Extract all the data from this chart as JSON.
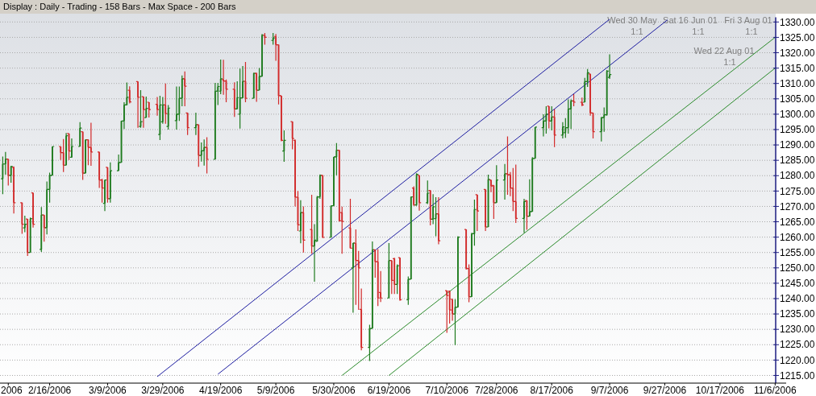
{
  "chart_data": {
    "type": "candlestick",
    "title": "Display :  Daily  - Trading - 158 Bars -  Max Space - 200 Bars",
    "x": [
      "2006-01-30",
      "2006-01-31",
      "2006-02-01",
      "2006-02-02",
      "2006-02-03",
      "2006-02-06",
      "2006-02-07",
      "2006-02-08",
      "2006-02-09",
      "2006-02-10",
      "2006-02-13",
      "2006-02-14",
      "2006-02-15",
      "2006-02-16",
      "2006-02-17",
      "2006-02-20",
      "2006-02-21",
      "2006-02-22",
      "2006-02-23",
      "2006-02-24",
      "2006-02-27",
      "2006-02-28",
      "2006-03-01",
      "2006-03-02",
      "2006-03-03",
      "2006-03-06",
      "2006-03-07",
      "2006-03-08",
      "2006-03-09",
      "2006-03-10",
      "2006-03-13",
      "2006-03-14",
      "2006-03-15",
      "2006-03-16",
      "2006-03-17",
      "2006-03-20",
      "2006-03-21",
      "2006-03-22",
      "2006-03-23",
      "2006-03-24",
      "2006-03-27",
      "2006-03-28",
      "2006-03-29",
      "2006-03-30",
      "2006-03-31",
      "2006-04-03",
      "2006-04-04",
      "2006-04-05",
      "2006-04-06",
      "2006-04-07",
      "2006-04-10",
      "2006-04-11",
      "2006-04-12",
      "2006-04-13",
      "2006-04-14",
      "2006-04-17",
      "2006-04-18",
      "2006-04-19",
      "2006-04-20",
      "2006-04-21",
      "2006-04-24",
      "2006-04-25",
      "2006-04-26",
      "2006-04-27",
      "2006-04-28",
      "2006-05-01",
      "2006-05-02",
      "2006-05-03",
      "2006-05-04",
      "2006-05-05",
      "2006-05-08",
      "2006-05-09",
      "2006-05-10",
      "2006-05-11",
      "2006-05-12",
      "2006-05-15",
      "2006-05-16",
      "2006-05-17",
      "2006-05-18",
      "2006-05-19",
      "2006-05-22",
      "2006-05-23",
      "2006-05-24",
      "2006-05-25",
      "2006-05-26",
      "2006-05-29",
      "2006-05-30",
      "2006-05-31",
      "2006-06-01",
      "2006-06-02",
      "2006-06-05",
      "2006-06-06",
      "2006-06-07",
      "2006-06-08",
      "2006-06-09",
      "2006-06-12",
      "2006-06-13",
      "2006-06-14",
      "2006-06-15",
      "2006-06-16",
      "2006-06-19",
      "2006-06-20",
      "2006-06-21",
      "2006-06-22",
      "2006-06-23",
      "2006-06-26",
      "2006-06-27",
      "2006-06-28",
      "2006-06-29",
      "2006-06-30",
      "2006-07-03",
      "2006-07-04",
      "2006-07-05",
      "2006-07-06",
      "2006-07-07",
      "2006-07-10",
      "2006-07-11",
      "2006-07-12",
      "2006-07-13",
      "2006-07-14",
      "2006-07-17",
      "2006-07-18",
      "2006-07-19",
      "2006-07-20",
      "2006-07-21",
      "2006-07-24",
      "2006-07-25",
      "2006-07-26",
      "2006-07-27",
      "2006-07-28",
      "2006-07-31",
      "2006-08-01",
      "2006-08-02",
      "2006-08-03",
      "2006-08-04",
      "2006-08-07",
      "2006-08-08",
      "2006-08-09",
      "2006-08-10",
      "2006-08-11",
      "2006-08-14",
      "2006-08-15",
      "2006-08-16",
      "2006-08-17",
      "2006-08-18",
      "2006-08-21",
      "2006-08-22",
      "2006-08-23",
      "2006-08-24",
      "2006-08-25",
      "2006-08-28",
      "2006-08-29",
      "2006-08-30",
      "2006-08-31",
      "2006-09-01",
      "2006-09-04",
      "2006-09-05",
      "2006-09-06",
      "2006-09-07"
    ],
    "ohlc": [
      [
        1279,
        1286.2,
        1274,
        1283.8
      ],
      [
        1283.8,
        1287.7,
        1280.3,
        1285.4
      ],
      [
        1285.4,
        1285.4,
        1276.8,
        1280.1
      ],
      [
        1280.1,
        1283.2,
        1277.7,
        1283
      ],
      [
        1282.7,
        1283,
        1267.7,
        1271.2
      ],
      [
        1271.2,
        1271.2,
        1261.1,
        1264.2
      ],
      [
        1263,
        1267,
        1261.6,
        1264.2
      ],
      [
        1265.9,
        1265.9,
        1253.9,
        1255
      ],
      [
        1255,
        1266.4,
        1255,
        1266
      ],
      [
        1274.4,
        1274.4,
        1263.1,
        1264.2
      ],
      [
        1256,
        1269.8,
        1255.2,
        1267.2
      ],
      [
        1267.2,
        1267.2,
        1258.5,
        1263.1
      ],
      [
        1263.1,
        1278.1,
        1260.9,
        1275.5
      ],
      [
        1275.5,
        1281,
        1271.2,
        1280.1
      ],
      [
        1280.1,
        1289.5,
        1280.1,
        1289.5
      ],
      [
        1289.5,
        1289.5,
        1285.1,
        1287.5
      ],
      [
        1287.5,
        1291.9,
        1281.2,
        1283.4
      ],
      [
        1283.4,
        1293.9,
        1283.4,
        1293
      ],
      [
        1293.7,
        1293.7,
        1285.1,
        1288
      ],
      [
        1286,
        1292.1,
        1285.8,
        1289.5
      ],
      [
        1289.5,
        1297.4,
        1289.5,
        1295.5
      ],
      [
        1294.3,
        1294.3,
        1278.6,
        1280.8
      ],
      [
        1280.8,
        1291.7,
        1280.8,
        1291.7
      ],
      [
        1291.7,
        1291.7,
        1283.4,
        1289.2
      ],
      [
        1289.2,
        1297.2,
        1283.2,
        1287.7
      ],
      [
        1287.7,
        1287.7,
        1276,
        1278.6
      ],
      [
        1278.6,
        1279,
        1271.2,
        1276
      ],
      [
        1271,
        1278.6,
        1268.5,
        1278.6
      ],
      [
        1282.7,
        1282.7,
        1271.2,
        1272.5
      ],
      [
        1272.5,
        1284.3,
        1271.2,
        1281.6
      ],
      [
        1281.6,
        1286.9,
        1281.6,
        1284.3
      ],
      [
        1284.3,
        1297.8,
        1284.3,
        1297.8
      ],
      [
        1297.8,
        1303.9,
        1295.2,
        1303
      ],
      [
        1303,
        1310.3,
        1303,
        1305.5
      ],
      [
        1307.8,
        1309.1,
        1303.5,
        1304
      ],
      [
        1310.6,
        1310.6,
        1295.6,
        1305.5
      ],
      [
        1296,
        1307.8,
        1295.6,
        1297.6
      ],
      [
        1305.7,
        1305.7,
        1295.6,
        1301.5
      ],
      [
        1298.9,
        1305.7,
        1298.9,
        1301.9
      ],
      [
        1303.9,
        1303.9,
        1298.9,
        1301.5
      ],
      [
        1303.2,
        1305.6,
        1299.5,
        1301.5
      ],
      [
        1293.4,
        1306,
        1291.6,
        1303
      ],
      [
        1297.5,
        1305.6,
        1296.9,
        1303
      ],
      [
        1303,
        1310,
        1296.9,
        1300.2
      ],
      [
        1296,
        1303,
        1295,
        1302
      ],
      [
        1297.9,
        1309,
        1295,
        1300
      ],
      [
        1300,
        1309,
        1297.8,
        1305.2
      ],
      [
        1305.2,
        1312.6,
        1302.6,
        1311.5
      ],
      [
        1311.5,
        1313.9,
        1302.6,
        1309.1
      ],
      [
        1300.4,
        1300.4,
        1293.2,
        1295.6
      ],
      [
        1295.6,
        1300.5,
        1293.2,
        1296.6
      ],
      [
        1296.6,
        1296.6,
        1282.9,
        1286.6
      ],
      [
        1286.6,
        1290.8,
        1284.6,
        1288.1
      ],
      [
        1288.1,
        1291.8,
        1283.3,
        1289.2
      ],
      [
        1289.2,
        1292.5,
        1280.7,
        1285.3
      ],
      [
        1285.3,
        1310.2,
        1285.3,
        1307.5
      ],
      [
        1307.5,
        1310.2,
        1303,
        1309
      ],
      [
        1307.5,
        1317.8,
        1306.5,
        1311.5
      ],
      [
        1311.3,
        1317.7,
        1306.3,
        1310.8
      ],
      [
        1310.8,
        1311.3,
        1303.9,
        1308.1
      ],
      [
        1308.1,
        1310.4,
        1299.1,
        1301.7
      ],
      [
        1301.7,
        1310.7,
        1301.7,
        1305.4
      ],
      [
        1300,
        1314.8,
        1295.3,
        1305.3
      ],
      [
        1305.3,
        1315.7,
        1305.3,
        1310.7
      ],
      [
        1310.7,
        1317,
        1303.9,
        1305.2
      ],
      [
        1305.2,
        1313.5,
        1305.2,
        1313.3
      ],
      [
        1313.3,
        1313.5,
        1304,
        1307.8
      ],
      [
        1307.8,
        1315,
        1307.8,
        1312.3
      ],
      [
        1312.3,
        1326.1,
        1312.2,
        1325.7
      ],
      [
        1325.7,
        1326.4,
        1322.6,
        1325
      ],
      [
        1324,
        1326.4,
        1322.6,
        1324.8
      ],
      [
        1325.3,
        1326.1,
        1317.4,
        1322.6
      ],
      [
        1322.6,
        1322.6,
        1303.2,
        1306
      ],
      [
        1306,
        1306,
        1291.2,
        1291.5
      ],
      [
        1288,
        1294.7,
        1284.5,
        1291.5
      ],
      [
        1297.6,
        1297.6,
        1288.6,
        1292.1
      ],
      [
        1291.5,
        1291.8,
        1270,
        1273
      ],
      [
        1273,
        1275,
        1262,
        1264
      ],
      [
        1262,
        1272,
        1258,
        1268
      ],
      [
        1268,
        1270,
        1255,
        1259
      ],
      [
        1262.5,
        1273.8,
        1254.6,
        1257.1
      ],
      [
        1257.1,
        1264.2,
        1245.5,
        1259
      ],
      [
        1258.6,
        1273.4,
        1258.6,
        1273.1
      ],
      [
        1273.1,
        1280.4,
        1272.5,
        1280.1
      ],
      [
        1280.1,
        1280.1,
        1259.7,
        1259.9
      ],
      [
        1259.9,
        1270.2,
        1259.9,
        1270.2
      ],
      [
        1270.2,
        1286.1,
        1270.2,
        1286.1
      ],
      [
        1286.1,
        1290.6,
        1280.1,
        1288.3
      ],
      [
        1288.3,
        1288.3,
        1265.1,
        1265.3
      ],
      [
        1268,
        1269.9,
        1254.6,
        1265.1
      ],
      [
        1263,
        1272.5,
        1256.4,
        1256.4
      ],
      [
        1250,
        1258.1,
        1235.4,
        1258.1
      ],
      [
        1258,
        1262.5,
        1238,
        1252.4
      ],
      [
        1252.4,
        1255.5,
        1236.3,
        1250
      ],
      [
        1236.5,
        1243.3,
        1223.2,
        1224.1
      ],
      [
        1224.1,
        1231.5,
        1219.7,
        1230.3
      ],
      [
        1230.3,
        1258.6,
        1230.3,
        1255.9
      ],
      [
        1255.9,
        1255.9,
        1246.8,
        1252
      ],
      [
        1252,
        1256.1,
        1237.6,
        1240.2
      ],
      [
        1242,
        1249,
        1238.9,
        1240.2
      ],
      [
        1240.2,
        1258.1,
        1240.2,
        1252.4
      ],
      [
        1252.4,
        1252.4,
        1241.5,
        1245.9
      ],
      [
        1253,
        1253.3,
        1241.5,
        1244.6
      ],
      [
        1244.6,
        1251.1,
        1241.5,
        1250.7
      ],
      [
        1253.3,
        1253.3,
        1239.3,
        1239.6
      ],
      [
        1239.6,
        1247.2,
        1238,
        1246.3
      ],
      [
        1246.3,
        1273.1,
        1246.3,
        1273.1
      ],
      [
        1276,
        1276.5,
        1270.2,
        1270.5
      ],
      [
        1270.5,
        1280.8,
        1270.2,
        1280.4
      ],
      [
        1280.1,
        1280.1,
        1268.6,
        1271.2
      ],
      [
        1271.2,
        1278.4,
        1270.8,
        1274.3
      ],
      [
        1275.2,
        1275.2,
        1263.8,
        1265.8
      ],
      [
        1265.8,
        1274,
        1264.2,
        1269.9
      ],
      [
        1266,
        1273,
        1260.3,
        1267.6
      ],
      [
        1267.6,
        1273,
        1257.7,
        1258.8
      ],
      [
        1242.6,
        1242.6,
        1228.9,
        1241
      ],
      [
        1242.4,
        1242.6,
        1231.9,
        1236.3
      ],
      [
        1239.8,
        1239.8,
        1232.8,
        1235
      ],
      [
        1235,
        1239.8,
        1224.9,
        1237.2
      ],
      [
        1237.2,
        1260.3,
        1237.2,
        1260
      ],
      [
        1262.5,
        1262.5,
        1249.4,
        1249.8
      ],
      [
        1249.8,
        1251.1,
        1238.8,
        1240.6
      ],
      [
        1240.6,
        1261.4,
        1240.6,
        1261.1
      ],
      [
        1261.1,
        1272.2,
        1257.2,
        1269
      ],
      [
        1273.8,
        1273.8,
        1262,
        1268.5
      ],
      [
        1275.5,
        1275.5,
        1262,
        1263.3
      ],
      [
        1263.3,
        1280.3,
        1263.3,
        1278.8
      ],
      [
        1278.6,
        1278.6,
        1274.6,
        1276.6
      ],
      [
        1276.8,
        1276.8,
        1265.9,
        1271.2
      ],
      [
        1271.2,
        1283.4,
        1271.2,
        1278.6
      ],
      [
        1278.6,
        1283.8,
        1272.2,
        1280.6
      ],
      [
        1280.6,
        1292.8,
        1273.8,
        1280.3
      ],
      [
        1280.3,
        1281.2,
        1273.3,
        1276
      ],
      [
        1276,
        1282.5,
        1268.5,
        1271.6
      ],
      [
        1271.6,
        1283.6,
        1264.6,
        1266.1
      ],
      [
        1266.1,
        1272.5,
        1261.4,
        1271.6
      ],
      [
        1271.9,
        1271.9,
        1262.4,
        1266.8
      ],
      [
        1266.8,
        1278.8,
        1266.8,
        1268.3
      ],
      [
        1268.3,
        1286,
        1268.3,
        1285.6
      ],
      [
        1285.6,
        1295.8,
        1285.6,
        1295.8
      ],
      [
        1295.6,
        1300,
        1292.8,
        1297.8
      ],
      [
        1297.8,
        1302.6,
        1293.7,
        1300
      ],
      [
        1302.6,
        1302.6,
        1295.4,
        1297.8
      ],
      [
        1297.8,
        1302.6,
        1294.7,
        1299.1
      ],
      [
        1299.1,
        1301.6,
        1289.3,
        1293.2
      ],
      [
        1293.2,
        1297.4,
        1292.1,
        1295.9
      ],
      [
        1294,
        1298.7,
        1292.3,
        1295.6
      ],
      [
        1295.6,
        1304.8,
        1293.7,
        1301.7
      ],
      [
        1301.7,
        1304.8,
        1295.2,
        1304.3
      ],
      [
        1304.3,
        1306.5,
        1302.6,
        1303.9
      ],
      [
        1303.9,
        1305.4,
        1302.6,
        1303
      ],
      [
        1303.9,
        1311.8,
        1303.9,
        1310.6
      ],
      [
        1310.6,
        1314.7,
        1308.9,
        1313.5
      ],
      [
        1313.1,
        1313.1,
        1299.5,
        1300.4
      ],
      [
        1300.4,
        1300.4,
        1292.1,
        1294.3
      ],
      [
        1294.3,
        1299.1,
        1291.1,
        1298.9
      ],
      [
        1298.9,
        1302.2,
        1294.3,
        1299.8
      ],
      [
        1299.8,
        1314.4,
        1299.5,
        1314
      ],
      [
        1312,
        1319.5,
        1311.5,
        1312.9
      ]
    ],
    "colors": [
      "#1e7b1e",
      "#1e7b1e",
      "#d22a2a",
      "#1e7b1e",
      "#d22a2a",
      "#d22a2a",
      "#1e7b1e",
      "#d22a2a",
      "#1e7b1e",
      "#d22a2a",
      "#1e7b1e",
      "#d22a2a",
      "#1e7b1e",
      "#1e7b1e",
      "#1e7b1e",
      "#d22a2a",
      "#d22a2a",
      "#1e7b1e",
      "#d22a2a",
      "#1e7b1e",
      "#1e7b1e",
      "#d22a2a",
      "#1e7b1e",
      "#d22a2a",
      "#d22a2a",
      "#d22a2a",
      "#d22a2a",
      "#1e7b1e",
      "#d22a2a",
      "#1e7b1e",
      "#1e7b1e",
      "#1e7b1e",
      "#1e7b1e",
      "#1e7b1e",
      "#d22a2a",
      "#d22a2a",
      "#1e7b1e",
      "#d22a2a",
      "#1e7b1e",
      "#d22a2a",
      "#d22a2a",
      "#1e7b1e",
      "#1e7b1e",
      "#d22a2a",
      "#1e7b1e",
      "#1e7b1e",
      "#1e7b1e",
      "#1e7b1e",
      "#d22a2a",
      "#d22a2a",
      "#1e7b1e",
      "#d22a2a",
      "#1e7b1e",
      "#1e7b1e",
      "#d22a2a",
      "#1e7b1e",
      "#1e7b1e",
      "#1e7b1e",
      "#d22a2a",
      "#d22a2a",
      "#d22a2a",
      "#1e7b1e",
      "#1e7b1e",
      "#1e7b1e",
      "#d22a2a",
      "#1e7b1e",
      "#d22a2a",
      "#1e7b1e",
      "#1e7b1e",
      "#d22a2a",
      "#1e7b1e",
      "#d22a2a",
      "#d22a2a",
      "#d22a2a",
      "#1e7b1e",
      "#d22a2a",
      "#d22a2a",
      "#d22a2a",
      "#1e7b1e",
      "#d22a2a",
      "#d22a2a",
      "#1e7b1e",
      "#1e7b1e",
      "#1e7b1e",
      "#d22a2a",
      "#1e7b1e",
      "#1e7b1e",
      "#1e7b1e",
      "#d22a2a",
      "#d22a2a",
      "#d22a2a",
      "#1e7b1e",
      "#d22a2a",
      "#d22a2a",
      "#d22a2a",
      "#1e7b1e",
      "#1e7b1e",
      "#d22a2a",
      "#d22a2a",
      "#d22a2a",
      "#1e7b1e",
      "#d22a2a",
      "#d22a2a",
      "#1e7b1e",
      "#d22a2a",
      "#1e7b1e",
      "#1e7b1e",
      "#d22a2a",
      "#1e7b1e",
      "#d22a2a",
      "#1e7b1e",
      "#d22a2a",
      "#1e7b1e",
      "#1e7b1e",
      "#d22a2a",
      "#d22a2a",
      "#d22a2a",
      "#d22a2a",
      "#1e7b1e",
      "#1e7b1e",
      "#d22a2a",
      "#d22a2a",
      "#1e7b1e",
      "#1e7b1e",
      "#d22a2a",
      "#d22a2a",
      "#1e7b1e",
      "#d22a2a",
      "#d22a2a",
      "#1e7b1e",
      "#1e7b1e",
      "#d22a2a",
      "#d22a2a",
      "#d22a2a",
      "#d22a2a",
      "#1e7b1e",
      "#d22a2a",
      "#1e7b1e",
      "#1e7b1e",
      "#1e7b1e",
      "#1e7b1e",
      "#1e7b1e",
      "#d22a2a",
      "#1e7b1e",
      "#d22a2a",
      "#1e7b1e",
      "#1e7b1e",
      "#1e7b1e",
      "#1e7b1e",
      "#d22a2a",
      "#d22a2a",
      "#1e7b1e",
      "#1e7b1e",
      "#d22a2a",
      "#d22a2a",
      "#1e7b1e",
      "#1e7b1e",
      "#1e7b1e",
      "#1e7b1e"
    ],
    "series": [
      {
        "type": "line",
        "color": "#1c1ca0",
        "x": [
          "2006-03-27",
          "2006-09-07"
        ],
        "values": [
          1214.6,
          1330.9
        ]
      },
      {
        "type": "line",
        "color": "#1c1ca0",
        "x": [
          "2006-04-18",
          "2006-09-28"
        ],
        "values": [
          1215.4,
          1330.7
        ]
      },
      {
        "type": "line",
        "color": "#2a8a2a",
        "x": [
          "2006-06-02",
          "2006-11-06"
        ],
        "values": [
          1215,
          1325
        ]
      },
      {
        "type": "line",
        "color": "#2a8a2a",
        "x": [
          "2006-06-19",
          "2006-11-06"
        ],
        "values": [
          1215,
          1315
        ]
      }
    ],
    "xlim": [
      "2006-01-29",
      "2006-11-10"
    ],
    "xticks": [
      {
        "value": "2006-02-01",
        "label": "2006"
      },
      {
        "value": "2006-02-16",
        "label": "2/16/2006"
      },
      {
        "value": "2006-03-09",
        "label": "3/9/2006"
      },
      {
        "value": "2006-03-29",
        "label": "3/29/2006"
      },
      {
        "value": "2006-04-19",
        "label": "4/19/2006"
      },
      {
        "value": "2006-05-09",
        "label": "5/9/2006"
      },
      {
        "value": "2006-05-30",
        "label": "5/30/2006"
      },
      {
        "value": "2006-06-19",
        "label": "6/19/2006"
      },
      {
        "value": "2006-07-10",
        "label": "7/10/2006"
      },
      {
        "value": "2006-07-28",
        "label": "7/28/2006"
      },
      {
        "value": "2006-08-17",
        "label": "8/17/2006"
      },
      {
        "value": "2006-09-07",
        "label": "9/7/2006"
      },
      {
        "value": "2006-09-27",
        "label": "9/27/2006"
      },
      {
        "value": "2006-10-17",
        "label": "10/17/2006"
      },
      {
        "value": "2006-11-06",
        "label": "11/6/2006"
      }
    ],
    "ylim": [
      1212.5,
      1331.5
    ],
    "yticks": [
      {
        "value": 1215,
        "label": "1215.00"
      },
      {
        "value": 1220,
        "label": "1220.00"
      },
      {
        "value": 1225,
        "label": "1225.00"
      },
      {
        "value": 1230,
        "label": "1230.00"
      },
      {
        "value": 1235,
        "label": "1235.00"
      },
      {
        "value": 1240,
        "label": "1240.00"
      },
      {
        "value": 1245,
        "label": "1245.00"
      },
      {
        "value": 1250,
        "label": "1250.00"
      },
      {
        "value": 1255,
        "label": "1255.00"
      },
      {
        "value": 1260,
        "label": "1260.00"
      },
      {
        "value": 1265,
        "label": "1265.00"
      },
      {
        "value": 1270,
        "label": "1270.00"
      },
      {
        "value": 1275,
        "label": "1275.00"
      },
      {
        "value": 1280,
        "label": "1280.00"
      },
      {
        "value": 1285,
        "label": "1285.00"
      },
      {
        "value": 1290,
        "label": "1290.00"
      },
      {
        "value": 1295,
        "label": "1295.00"
      },
      {
        "value": 1300,
        "label": "1300.00"
      },
      {
        "value": 1305,
        "label": "1305.00"
      },
      {
        "value": 1310,
        "label": "1310.00"
      },
      {
        "value": 1315,
        "label": "1315.00"
      },
      {
        "value": 1320,
        "label": "1320.00"
      },
      {
        "value": 1325,
        "label": "1325.00"
      },
      {
        "value": 1330,
        "label": "1330.00"
      }
    ],
    "grid": "y",
    "annotations": [
      "Wed 30 May",
      "1:1",
      "Sat 16 Jun 01",
      "1:1",
      "Fri 3 Aug 01",
      "1:1",
      "Wed 22 Aug 01",
      "1:1"
    ]
  }
}
